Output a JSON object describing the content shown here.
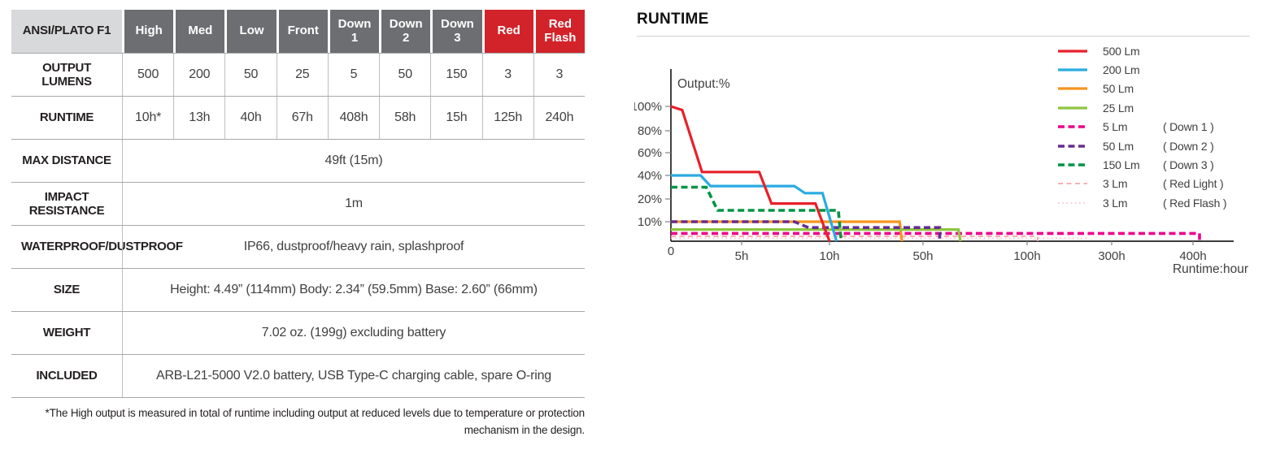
{
  "table": {
    "header": {
      "product_standard": "ANSI/PLATO F1",
      "modes": [
        "High",
        "Med",
        "Low",
        "Front",
        "Down 1",
        "Down 2",
        "Down 3",
        "Red",
        "Red Flash"
      ]
    },
    "rows": {
      "output_lumens": {
        "label": "OUTPUT LUMENS",
        "values": [
          "500",
          "200",
          "50",
          "25",
          "5",
          "50",
          "150",
          "3",
          "3"
        ]
      },
      "runtime": {
        "label": "RUNTIME",
        "values": [
          "10h*",
          "13h",
          "40h",
          "67h",
          "408h",
          "58h",
          "15h",
          "125h",
          "240h"
        ]
      },
      "max_distance": {
        "label": "MAX DISTANCE",
        "value": "49ft (15m)"
      },
      "impact_resistance": {
        "label": "IMPACT RESISTANCE",
        "value": "1m"
      },
      "waterproof": {
        "label": "WATERPROOF/DUSTPROOF",
        "value": "IP66, dustproof/heavy rain, splashproof"
      },
      "size": {
        "label": "SIZE",
        "value": "Height: 4.49” (114mm) Body: 2.34” (59.5mm) Base: 2.60” (66mm)"
      },
      "weight": {
        "label": "WEIGHT",
        "value": "7.02 oz. (199g) excluding battery"
      },
      "included": {
        "label": "INCLUDED",
        "value": "ARB-L21-5000 V2.0 battery, USB Type-C charging cable, spare O-ring"
      }
    },
    "footnote": "*The High output is measured in total of runtime including output at reduced levels due to temperature or protection mechanism in the design.",
    "colors": {
      "header_gray": "#6d6e71",
      "header_red": "#d2232a",
      "header_light": "#d8d9da",
      "grid_line": "#a6a8ab"
    }
  },
  "chart_data": {
    "type": "line",
    "title": "RUNTIME",
    "ylabel": "Output:%",
    "xlabel": "Runtime:hour",
    "x_axis": {
      "scale": "piecewise-nonlinear",
      "ticks": [
        {
          "label": "0",
          "value": 0
        },
        {
          "label": "5h",
          "value": 5
        },
        {
          "label": "10h",
          "value": 10
        },
        {
          "label": "50h",
          "value": 50
        },
        {
          "label": "100h",
          "value": 100
        },
        {
          "label": "300h",
          "value": 300
        },
        {
          "label": "400h",
          "value": 400
        }
      ]
    },
    "y_axis": {
      "scale": "piecewise-nonlinear",
      "ticks": [
        {
          "label": "100%",
          "value": 100
        },
        {
          "label": "80%",
          "value": 80
        },
        {
          "label": "60%",
          "value": 60
        },
        {
          "label": "40%",
          "value": 40
        },
        {
          "label": "20%",
          "value": 20
        },
        {
          "label": "10%",
          "value": 10
        }
      ]
    },
    "grid": false,
    "legend_position": "top-right",
    "series": [
      {
        "name": "500 Lm",
        "mode": "",
        "color": "#e8202a",
        "style": "solid",
        "points": [
          [
            0,
            100
          ],
          [
            0.8,
            97
          ],
          [
            2.2,
            43
          ],
          [
            6,
            43
          ],
          [
            6.7,
            18
          ],
          [
            9.2,
            18
          ],
          [
            10,
            0
          ]
        ]
      },
      {
        "name": "200 Lm",
        "mode": "",
        "color": "#29abe2",
        "style": "solid",
        "points": [
          [
            0,
            40
          ],
          [
            2.1,
            40
          ],
          [
            2.8,
            31
          ],
          [
            8,
            31
          ],
          [
            8.6,
            25
          ],
          [
            9.6,
            25
          ],
          [
            13,
            0
          ]
        ]
      },
      {
        "name": "50 Lm",
        "mode": "",
        "color": "#f7941d",
        "style": "solid",
        "points": [
          [
            0,
            10
          ],
          [
            40,
            10
          ],
          [
            41,
            0
          ]
        ]
      },
      {
        "name": "25 Lm",
        "mode": "",
        "color": "#8dc63f",
        "style": "solid",
        "points": [
          [
            0,
            6
          ],
          [
            67,
            6
          ],
          [
            68,
            0
          ]
        ]
      },
      {
        "name": "5 Lm",
        "mode": "( Down 1 )",
        "color": "#ec008c",
        "style": "dashed",
        "points": [
          [
            0,
            4
          ],
          [
            408,
            4
          ],
          [
            408,
            0
          ]
        ]
      },
      {
        "name": "50 Lm",
        "mode": "( Down 2 )",
        "color": "#662d91",
        "style": "dashed",
        "points": [
          [
            0,
            10
          ],
          [
            8,
            10
          ],
          [
            8.8,
            7
          ],
          [
            58,
            7
          ],
          [
            58,
            0
          ]
        ]
      },
      {
        "name": "150 Lm",
        "mode": "( Down 3 )",
        "color": "#009444",
        "style": "dashed",
        "points": [
          [
            0,
            30
          ],
          [
            2.5,
            30
          ],
          [
            3.3,
            15
          ],
          [
            13.8,
            15
          ],
          [
            15,
            0
          ]
        ]
      },
      {
        "name": "3 Lm",
        "mode": "( Red Light )",
        "color": "#f8a5a5",
        "style": "dashed-thin",
        "points": [
          [
            0,
            2.5
          ],
          [
            125,
            2.5
          ],
          [
            125,
            0
          ]
        ]
      },
      {
        "name": "3 Lm",
        "mode": "( Red Flash )",
        "color": "#fbc3ca",
        "style": "dotted",
        "points": [
          [
            0,
            1.5
          ],
          [
            240,
            1.5
          ],
          [
            240,
            0
          ]
        ]
      }
    ]
  }
}
